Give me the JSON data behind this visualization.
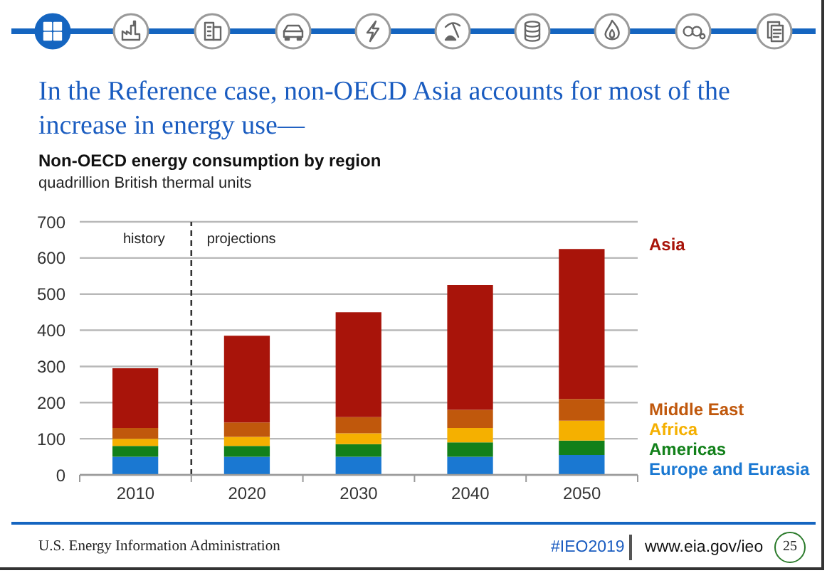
{
  "chart_data": {
    "type": "bar",
    "title": "In the Reference case, non-OECD Asia accounts for most of the increase in energy use—",
    "subtitle": "Non-OECD energy consumption by region",
    "ylabel": "quadrillion British thermal units",
    "x": [
      2010,
      2020,
      2030,
      2040,
      2050
    ],
    "xlim": [
      2005,
      2055
    ],
    "xticks": [
      {
        "value": 2005,
        "label": null
      },
      2010,
      {
        "value": 2015,
        "label": null
      },
      2020,
      {
        "value": 2025,
        "label": null
      },
      2030,
      {
        "value": 2035,
        "label": null
      },
      2040,
      {
        "value": 2045,
        "label": null
      },
      2050,
      {
        "value": 2055,
        "label": null
      }
    ],
    "stacked": true,
    "series": [
      {
        "name": "Europe and Eurasia",
        "color": "#1a78d2",
        "values": [
          50,
          50,
          50,
          50,
          55
        ]
      },
      {
        "name": "Americas",
        "color": "#12801a",
        "values": [
          30,
          30,
          35,
          40,
          40
        ]
      },
      {
        "name": "Africa",
        "color": "#f5b000",
        "values": [
          20,
          25,
          30,
          40,
          55
        ]
      },
      {
        "name": "Middle East",
        "color": "#c0580c",
        "values": [
          30,
          40,
          45,
          50,
          60
        ]
      },
      {
        "name": "Asia",
        "color": "#a8140a",
        "values": [
          165,
          240,
          290,
          345,
          415
        ]
      }
    ],
    "ylim": [
      0,
      700
    ],
    "yticks": [
      0,
      100,
      200,
      300,
      400,
      500,
      600,
      700
    ],
    "grid": "y",
    "legend": "right",
    "ref_lines": [
      {
        "axis": "x",
        "value": 2015,
        "line_style": "dashed",
        "color": "#333333"
      }
    ],
    "annotations": [
      "history",
      "projections",
      "U.S. Energy Information Administration",
      "#IEO2019",
      "www.eia.gov/ieo",
      "25"
    ]
  }
}
